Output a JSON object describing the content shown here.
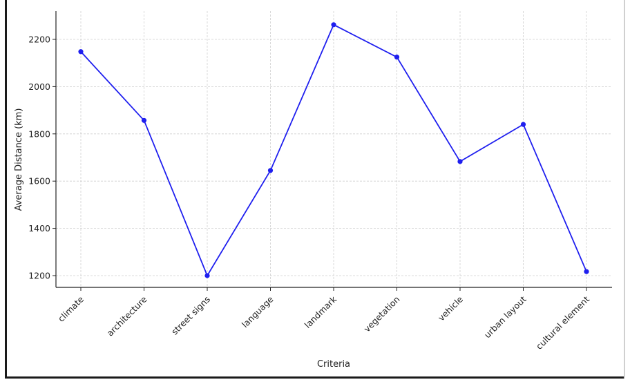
{
  "chart_data": {
    "type": "line",
    "title": "",
    "xlabel": "Criteria",
    "ylabel": "Average Distance (km)",
    "categories": [
      "climate",
      "architecture",
      "street signs",
      "language",
      "landmark",
      "vegetation",
      "vehicle",
      "urban layout",
      "cultural element"
    ],
    "series": [
      {
        "values": [
          2148,
          1857,
          1200,
          1645,
          2262,
          2125,
          1683,
          1840,
          1217
        ]
      }
    ],
    "yticks": [
      1200,
      1400,
      1600,
      1800,
      2000,
      2200
    ],
    "ylim": [
      1150,
      2310
    ],
    "grid": true,
    "line_color": "#1f1fef",
    "marker_color": "#1f1fef"
  }
}
